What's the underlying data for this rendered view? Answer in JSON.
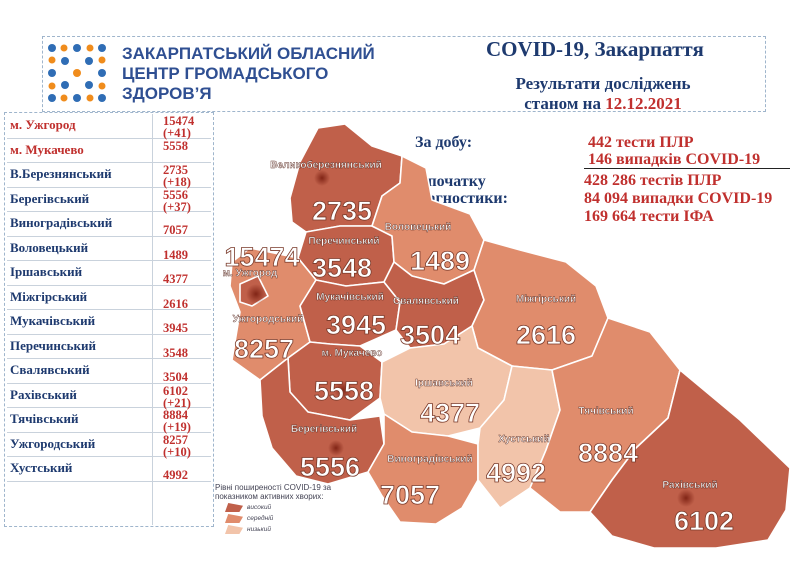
{
  "header": {
    "org_lines": [
      "ЗАКАРПАТСЬКИЙ ОБЛАСНИЙ",
      "ЦЕНТР ГРОМАДСЬКОГО",
      "ЗДОРОВ’Я"
    ],
    "title": "COVID-19, Закарпаття",
    "subtitle_line1": "Результати досліджень",
    "subtitle_line2_prefix": "станом на",
    "date": "12.12.2021"
  },
  "daily": {
    "label": "За добу:",
    "tests_num": "442",
    "tests_text": "тести ПЛР",
    "cases_num": "146",
    "cases_text": "випадків COVID-19"
  },
  "total": {
    "label_line1": "З початку",
    "label_line2": "діагностики:",
    "pcr_num": "428 286",
    "pcr_text": "тестів ПЛР",
    "cases_num": "84 094",
    "cases_text": "випадки COVID-19",
    "ifa_num": "169 664",
    "ifa_text": "тести ІФА"
  },
  "districts_table": [
    {
      "name": "м. Ужгород",
      "total": "15474",
      "delta": "(+41)",
      "highlight": true
    },
    {
      "name": "м. Мукачево",
      "total": "5558",
      "delta": "",
      "highlight": true
    },
    {
      "name": "В.Березнянський",
      "total": "2735",
      "delta": "(+18)",
      "highlight": false
    },
    {
      "name": "Берегівський",
      "total": "5556",
      "delta": "(+37)",
      "highlight": false
    },
    {
      "name": "Виноградівський",
      "total": "7057",
      "delta": "",
      "highlight": false
    },
    {
      "name": "Воловецький",
      "total": "1489",
      "delta": "",
      "highlight": false
    },
    {
      "name": "Іршавський",
      "total": "4377",
      "delta": "",
      "highlight": false
    },
    {
      "name": "Міжгірський",
      "total": "2616",
      "delta": "",
      "highlight": false
    },
    {
      "name": "Мукачівський",
      "total": "3945",
      "delta": "",
      "highlight": false
    },
    {
      "name": "Перечинський",
      "total": "3548",
      "delta": "",
      "highlight": false
    },
    {
      "name": "Свалявський",
      "total": "3504",
      "delta": "",
      "highlight": false
    },
    {
      "name": "Рахівський",
      "total": "6102",
      "delta": "(+21)",
      "highlight": false
    },
    {
      "name": "Тячівський",
      "total": "8884",
      "delta": "(+19)",
      "highlight": false
    },
    {
      "name": "Ужгородський",
      "total": "8257",
      "delta": "(+10)",
      "highlight": false
    },
    {
      "name": "Хустський",
      "total": "4992",
      "delta": "",
      "highlight": false
    }
  ],
  "map_labels": [
    {
      "key": "vberezna",
      "name": "Великоберезнянський",
      "value": "2735"
    },
    {
      "key": "perechyn",
      "name": "Перечинський",
      "value": "3548"
    },
    {
      "key": "volovets",
      "name": "Воловецький",
      "value": "1489"
    },
    {
      "key": "uzhhorod_city",
      "name": "м. Ужгород",
      "value": "15474"
    },
    {
      "key": "mukachivskyi",
      "name": "Мукачівський",
      "value": "3945"
    },
    {
      "key": "svaliava",
      "name": "Свалявський",
      "value": "3504"
    },
    {
      "key": "mizhhiria",
      "name": "Міжгірський",
      "value": "2616"
    },
    {
      "key": "uzhhorodskyi",
      "name": "Ужгородський",
      "value": "8257"
    },
    {
      "key": "mukachevo_city",
      "name": "м. Мукачево",
      "value": "5558"
    },
    {
      "key": "irshava",
      "name": "Іршавський",
      "value": "4377"
    },
    {
      "key": "tiachiv",
      "name": "Тячівський",
      "value": "8884"
    },
    {
      "key": "khust",
      "name": "Хустський",
      "value": "4992"
    },
    {
      "key": "berehove",
      "name": "Берегівський",
      "value": "5556"
    },
    {
      "key": "vynohradiv",
      "name": "Виноградівський",
      "value": "7057"
    },
    {
      "key": "rakhiv",
      "name": "Рахівський",
      "value": "6102"
    }
  ],
  "legend": {
    "caption": "Рівні поширеності COVID-19 за показником активних хворих:",
    "items": [
      {
        "label": "високий",
        "color": "#c0604a"
      },
      {
        "label": "середній",
        "color": "#e08c6c"
      },
      {
        "label": "низький",
        "color": "#f2c4aa"
      }
    ]
  },
  "colors": {
    "high": "#c0604a",
    "medium": "#e08c6c",
    "low": "#f2c4aa",
    "accent_red": "#c0302e",
    "navy": "#1e3a6f"
  }
}
